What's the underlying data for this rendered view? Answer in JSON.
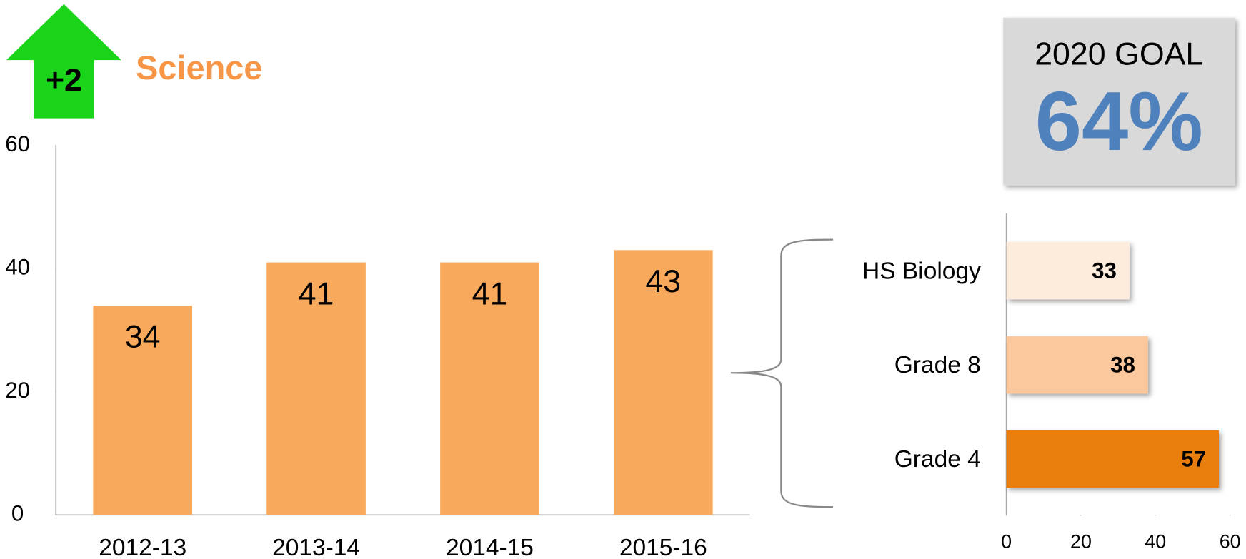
{
  "badge": "+2",
  "goal": {
    "label": "2020 GOAL",
    "value": "64%"
  },
  "chart_data": [
    {
      "type": "bar",
      "title": "Science",
      "categories": [
        "2012-13",
        "2013-14",
        "2014-15",
        "2015-16"
      ],
      "values": [
        34,
        41,
        41,
        43
      ],
      "color": "#f8a95b",
      "ylim": [
        0,
        60
      ],
      "yticks": [
        0,
        20,
        40,
        60
      ]
    },
    {
      "type": "barh",
      "categories": [
        "HS Biology",
        "Grade 8",
        "Grade 4"
      ],
      "values": [
        33,
        38,
        57
      ],
      "colors": [
        "#fdebdc",
        "#fbc89e",
        "#e97e0a"
      ],
      "xlim": [
        0,
        60
      ],
      "xticks": [
        0,
        20,
        40,
        60
      ]
    }
  ]
}
